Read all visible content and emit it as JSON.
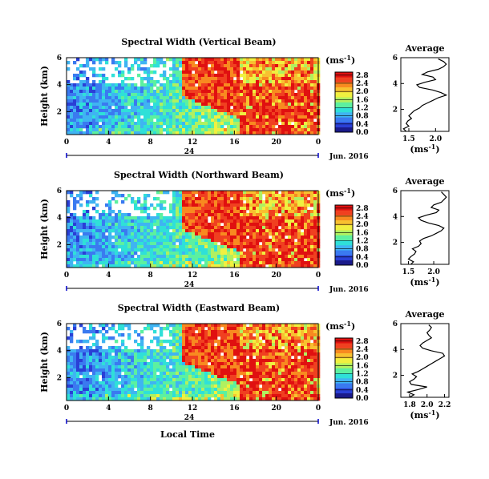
{
  "colormap": [
    "#1a1a8a",
    "#2a3fd6",
    "#3a7af0",
    "#3fb4f2",
    "#2fe0d8",
    "#5cf0a0",
    "#b0f060",
    "#f0f040",
    "#f8c030",
    "#f88a20",
    "#f04020",
    "#e01010"
  ],
  "chart_data": [
    {
      "type": "heatmap",
      "title": "Spectral Width (Vertical Beam)",
      "ylabel": "Height (km)",
      "x_ticks": [
        "0",
        "4",
        "8",
        "12",
        "16",
        "20",
        "0"
      ],
      "y_ticks": [
        "2",
        "4",
        "6"
      ],
      "date_label": "24",
      "date_suffix": "Jun. 2016",
      "xlim_hours": [
        0,
        24
      ],
      "ylim_km": [
        0.3,
        6
      ],
      "colorbar": {
        "unit": "(ms",
        "unit_sup": "-1",
        "unit_close": ")",
        "ticks": [
          "0.0",
          "0.4",
          "0.8",
          "1.2",
          "1.6",
          "2.0",
          "2.4",
          "2.8"
        ],
        "range": [
          0.0,
          2.95
        ]
      },
      "profile": {
        "title": "Average",
        "xlabel": "(ms",
        "xlabel_sup": "-1",
        "xlabel_close": ")",
        "x_ticks": [
          "1.5",
          "2.0"
        ],
        "x_tick_values": [
          1.5,
          2.0
        ],
        "xlim": [
          1.35,
          2.25
        ],
        "y_ticks": [
          "2",
          "4",
          "6"
        ],
        "ylim": [
          0.3,
          6
        ],
        "height_km": [
          0.3,
          0.5,
          0.7,
          0.9,
          1.1,
          1.3,
          1.5,
          1.7,
          1.9,
          2.1,
          2.3,
          2.5,
          2.7,
          2.9,
          3.1,
          3.3,
          3.5,
          3.7,
          3.9,
          4.1,
          4.3,
          4.5,
          4.7,
          4.9,
          5.1,
          5.3,
          5.5,
          5.7,
          5.9
        ],
        "value": [
          1.45,
          1.4,
          1.5,
          1.45,
          1.48,
          1.55,
          1.5,
          1.55,
          1.6,
          1.7,
          1.75,
          1.85,
          1.95,
          2.05,
          2.2,
          2.1,
          1.95,
          1.7,
          1.65,
          1.8,
          2.0,
          1.95,
          1.75,
          1.85,
          2.05,
          2.15,
          2.2,
          2.15,
          2.05
        ]
      }
    },
    {
      "type": "heatmap",
      "title": "Spectral Width (Northward Beam)",
      "ylabel": "Height (km)",
      "x_ticks": [
        "0",
        "4",
        "8",
        "12",
        "16",
        "20",
        "0"
      ],
      "y_ticks": [
        "2",
        "4",
        "6"
      ],
      "date_label": "24",
      "date_suffix": "Jun. 2016",
      "xlim_hours": [
        0,
        24
      ],
      "ylim_km": [
        0.3,
        6
      ],
      "colorbar": {
        "unit": "(ms",
        "unit_sup": "-1",
        "unit_close": ")",
        "ticks": [
          "0.0",
          "0.4",
          "0.8",
          "1.2",
          "1.6",
          "2.0",
          "2.4",
          "2.8"
        ],
        "range": [
          0.0,
          2.95
        ]
      },
      "profile": {
        "title": "Average",
        "xlabel": "(ms",
        "xlabel_sup": "-1",
        "xlabel_close": ")",
        "x_ticks": [
          "1.5",
          "2.0"
        ],
        "x_tick_values": [
          1.5,
          2.0
        ],
        "xlim": [
          1.35,
          2.3
        ],
        "y_ticks": [
          "2",
          "4",
          "6"
        ],
        "ylim": [
          0.3,
          6
        ],
        "height_km": [
          0.3,
          0.5,
          0.7,
          0.9,
          1.1,
          1.3,
          1.5,
          1.7,
          1.9,
          2.1,
          2.3,
          2.5,
          2.7,
          2.9,
          3.1,
          3.3,
          3.5,
          3.7,
          3.9,
          4.1,
          4.3,
          4.5,
          4.7,
          4.9,
          5.1,
          5.3,
          5.5,
          5.7,
          5.9
        ],
        "value": [
          1.55,
          1.6,
          1.5,
          1.55,
          1.62,
          1.65,
          1.58,
          1.7,
          1.75,
          1.72,
          1.8,
          1.95,
          2.05,
          2.15,
          2.2,
          2.1,
          1.9,
          1.75,
          1.7,
          1.85,
          2.05,
          2.1,
          1.95,
          2.0,
          2.15,
          2.2,
          2.25,
          2.2,
          2.15
        ]
      }
    },
    {
      "type": "heatmap",
      "title": "Spectral Width (Eastward Beam)",
      "ylabel": "Height (km)",
      "xlabel": "Local Time",
      "x_ticks": [
        "0",
        "4",
        "8",
        "12",
        "16",
        "20",
        "0"
      ],
      "y_ticks": [
        "2",
        "4",
        "6"
      ],
      "date_label": "24",
      "date_suffix": "Jun. 2016",
      "xlim_hours": [
        0,
        24
      ],
      "ylim_km": [
        0.3,
        6
      ],
      "colorbar": {
        "unit": "(ms",
        "unit_sup": "-1",
        "unit_close": ")",
        "ticks": [
          "0.0",
          "0.4",
          "0.8",
          "1.2",
          "1.6",
          "2.0",
          "2.4",
          "2.8"
        ],
        "range": [
          0.0,
          2.95
        ]
      },
      "profile": {
        "title": "Average",
        "xlabel": "(ms",
        "xlabel_sup": "-1",
        "xlabel_close": ")",
        "x_ticks": [
          "1.8",
          "2.0",
          "2.2"
        ],
        "x_tick_values": [
          1.8,
          2.0,
          2.2
        ],
        "xlim": [
          1.7,
          2.25
        ],
        "y_ticks": [
          "2",
          "4",
          "6"
        ],
        "ylim": [
          0.3,
          6
        ],
        "height_km": [
          0.3,
          0.5,
          0.7,
          0.9,
          1.1,
          1.3,
          1.5,
          1.7,
          1.9,
          2.1,
          2.3,
          2.5,
          2.7,
          2.9,
          3.1,
          3.3,
          3.5,
          3.7,
          3.9,
          4.1,
          4.3,
          4.5,
          4.7,
          4.9,
          5.1,
          5.3,
          5.5,
          5.7,
          5.9
        ],
        "value": [
          1.8,
          1.85,
          1.78,
          1.9,
          2.0,
          1.82,
          1.8,
          1.85,
          1.88,
          1.83,
          1.9,
          1.95,
          2.0,
          2.05,
          2.1,
          2.15,
          2.2,
          2.18,
          2.05,
          1.95,
          1.92,
          1.95,
          2.0,
          2.05,
          2.02,
          2.0,
          2.03,
          2.05,
          2.02
        ]
      }
    }
  ]
}
